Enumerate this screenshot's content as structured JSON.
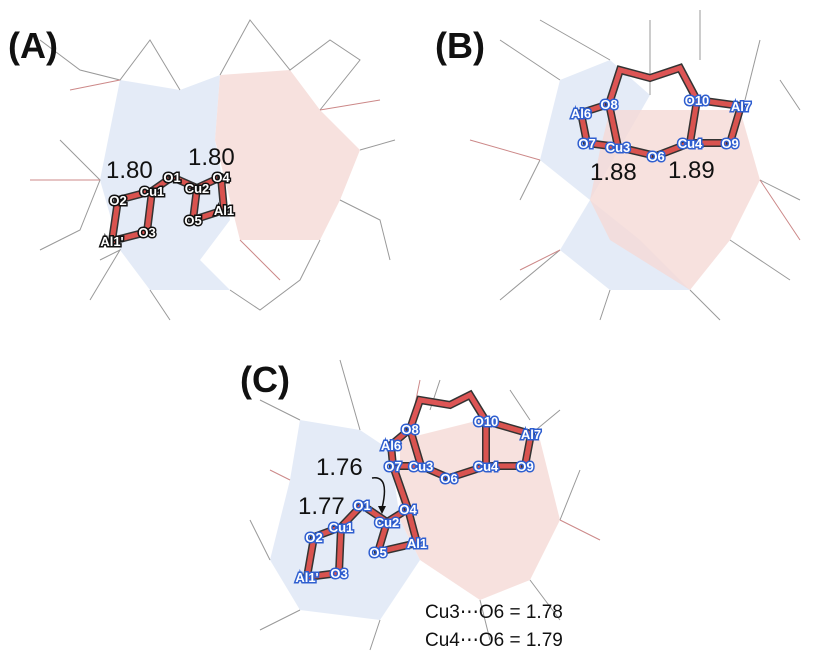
{
  "panels": [
    {
      "label": "(A)",
      "atoms": [
        "Cu1",
        "Cu2",
        "O1",
        "O2",
        "O3",
        "O4",
        "O5",
        "Al1",
        "Al1'"
      ],
      "distances": [
        "1.80",
        "1.80"
      ]
    },
    {
      "label": "(B)",
      "atoms": [
        "O8",
        "Al6",
        "O10",
        "Al7",
        "O7",
        "Cu3",
        "O6",
        "Cu4",
        "O9"
      ],
      "distances": [
        "1.88",
        "1.89"
      ]
    },
    {
      "label": "(C)",
      "atoms": [
        "O8",
        "Al6",
        "O10",
        "Al7",
        "O7",
        "Cu3",
        "O6",
        "Cu4",
        "O9",
        "O1",
        "Cu2",
        "O4",
        "Cu1",
        "O2",
        "O5",
        "Al1",
        "O3",
        "Al1'"
      ],
      "distances": [
        "1.76",
        "1.77"
      ],
      "notes": [
        "Cu3⋯O6 = 1.78",
        "Cu4⋯O6 = 1.79"
      ]
    }
  ]
}
